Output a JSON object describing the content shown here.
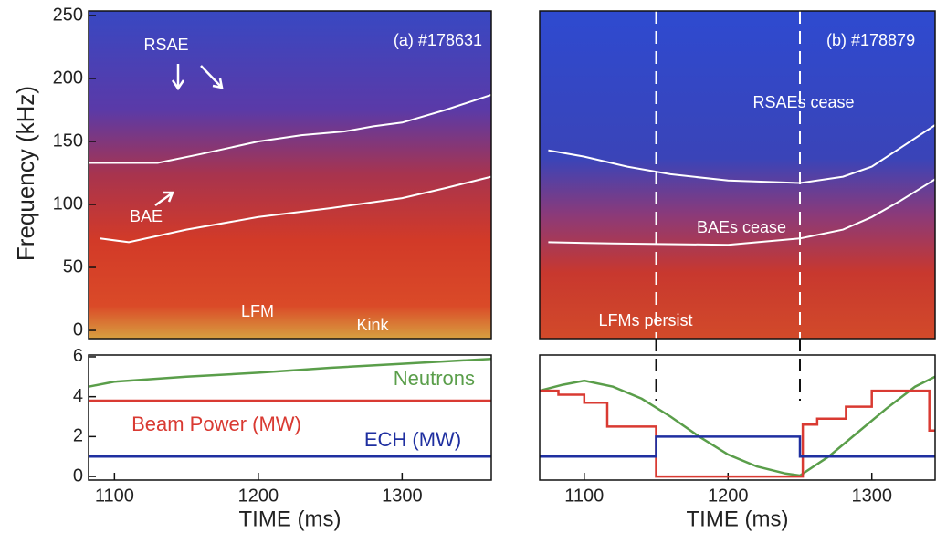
{
  "chart_data": [
    {
      "type": "line",
      "ylabel": "Frequency (kHz)",
      "xlim": [
        1082,
        1362
      ],
      "ylim": [
        -6.5,
        253.6
      ],
      "yticks": [
        0,
        50,
        100,
        150,
        200,
        250
      ],
      "annotations": [
        "(a) #178631",
        "RSAE",
        "BAE",
        "LFM",
        "Kink"
      ],
      "series": [
        {
          "color": "#ffffff",
          "x": [
            1082,
            1130,
            1160,
            1200,
            1230,
            1260,
            1280,
            1300,
            1330,
            1362
          ],
          "values": [
            133,
            133,
            140,
            150,
            155,
            158,
            162,
            165,
            175,
            187
          ]
        },
        {
          "color": "#ffffff",
          "x": [
            1090,
            1110,
            1130,
            1150,
            1200,
            1250,
            1300,
            1330,
            1362
          ],
          "values": [
            73,
            70,
            75,
            80,
            90,
            97,
            105,
            113,
            122
          ]
        }
      ]
    },
    {
      "type": "line",
      "xlim": [
        1069,
        1344
      ],
      "ylim": [
        -6.5,
        253.6
      ],
      "vlines": [
        1150,
        1250
      ],
      "annotations": [
        "(b) #178879",
        "RSAEs cease",
        "BAEs cease",
        "LFMs persist"
      ],
      "series": [
        {
          "color": "#ffffff",
          "x": [
            1075,
            1100,
            1130,
            1160,
            1200,
            1250,
            1280,
            1300,
            1320,
            1344
          ],
          "values": [
            143,
            138,
            130,
            124,
            119,
            117,
            122,
            130,
            145,
            163
          ]
        },
        {
          "color": "#ffffff",
          "x": [
            1075,
            1120,
            1200,
            1250,
            1280,
            1300,
            1320,
            1344
          ],
          "values": [
            70,
            69,
            68,
            73,
            80,
            90,
            103,
            120
          ]
        }
      ]
    },
    {
      "type": "line",
      "xlabel": "TIME (ms)",
      "xlim": [
        1082,
        1362
      ],
      "ylim": [
        -0.18,
        6.09
      ],
      "yticks": [
        0,
        2,
        4,
        6
      ],
      "xticks": [
        1100,
        1200,
        1300
      ],
      "series": [
        {
          "name": "Neutrons",
          "color": "#5a9e4a",
          "x": [
            1082,
            1100,
            1150,
            1200,
            1250,
            1300,
            1362
          ],
          "values": [
            4.5,
            4.75,
            5.0,
            5.2,
            5.45,
            5.65,
            5.9
          ]
        },
        {
          "name": "Beam Power (MW)",
          "color": "#d93a32",
          "x": [
            1082,
            1362
          ],
          "values": [
            3.8,
            3.8
          ]
        },
        {
          "name": "ECH (MW)",
          "color": "#1f2fa0",
          "x": [
            1082,
            1362
          ],
          "values": [
            1.0,
            1.0
          ]
        }
      ]
    },
    {
      "type": "line",
      "xlabel": "TIME (ms)",
      "xlim": [
        1069,
        1344
      ],
      "ylim": [
        -0.18,
        6.09
      ],
      "xticks": [
        1100,
        1200,
        1300
      ],
      "vlines": [
        1150,
        1250
      ],
      "series": [
        {
          "color": "#5a9e4a",
          "x": [
            1069,
            1085,
            1100,
            1120,
            1140,
            1160,
            1180,
            1200,
            1220,
            1240,
            1250,
            1270,
            1290,
            1310,
            1330,
            1344
          ],
          "values": [
            4.3,
            4.6,
            4.8,
            4.5,
            3.9,
            3.0,
            2.0,
            1.1,
            0.5,
            0.15,
            0.05,
            1.0,
            2.2,
            3.4,
            4.5,
            5.0
          ]
        },
        {
          "color": "#d93a32",
          "x": [
            1069,
            1082,
            1082,
            1100,
            1100,
            1116,
            1116,
            1150,
            1150,
            1252,
            1252,
            1262,
            1262,
            1282,
            1282,
            1300,
            1300,
            1340,
            1340,
            1344
          ],
          "values": [
            4.3,
            4.3,
            4.1,
            4.1,
            3.7,
            3.7,
            2.5,
            2.5,
            0,
            0,
            2.6,
            2.6,
            2.9,
            2.9,
            3.5,
            3.5,
            4.3,
            4.3,
            2.3,
            2.3
          ]
        },
        {
          "color": "#1f2fa0",
          "x": [
            1069,
            1150,
            1150,
            1250,
            1250,
            1344
          ],
          "values": [
            1.0,
            1.0,
            2.0,
            2.0,
            1.0,
            1.0
          ]
        }
      ]
    }
  ]
}
